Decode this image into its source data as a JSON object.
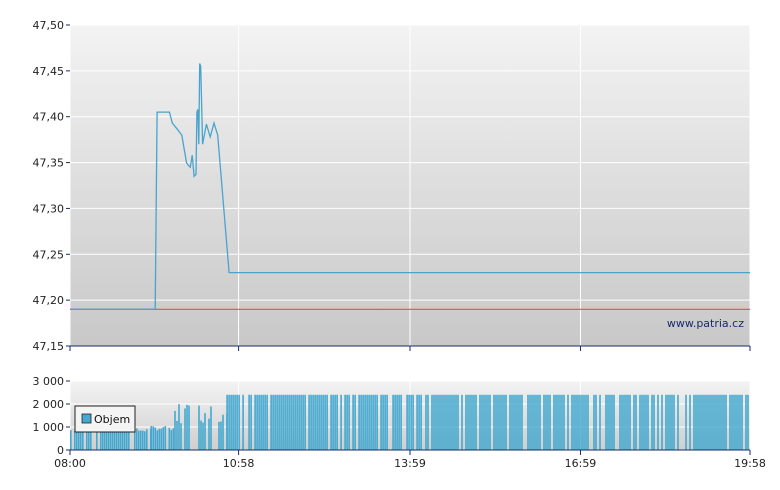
{
  "watermark": "www.patria.cz",
  "colors": {
    "price_line": "#4aa3cc",
    "reference_line": "#e05050",
    "volume_bar": "#44a8d0",
    "axis": "#1a2a6a"
  },
  "chart_data": [
    {
      "type": "line",
      "title": "",
      "x_unit": "time",
      "x_range": [
        "08:00",
        "19:58"
      ],
      "ylim": [
        47.15,
        47.5
      ],
      "y_ticks": [
        "47,50",
        "47,45",
        "47,40",
        "47,35",
        "47,30",
        "47,25",
        "47,20",
        "47,15"
      ],
      "grid": true,
      "reference_value": 47.19,
      "series": [
        {
          "x": [
            "08:00",
            "09:30",
            "09:32",
            "09:45",
            "09:48",
            "09:52",
            "09:58",
            "10:03",
            "10:05",
            "10:07",
            "10:09",
            "10:11",
            "10:12",
            "10:13",
            "10:14",
            "10:15",
            "10:16",
            "10:17",
            "10:18",
            "10:20",
            "10:24",
            "10:26",
            "10:28",
            "10:32",
            "10:36",
            "10:48",
            "19:58"
          ],
          "y": [
            47.19,
            47.19,
            47.405,
            47.405,
            47.393,
            47.388,
            47.38,
            47.35,
            47.347,
            47.345,
            47.358,
            47.335,
            47.336,
            47.337,
            47.405,
            47.408,
            47.37,
            47.458,
            47.455,
            47.37,
            47.392,
            47.385,
            47.378,
            47.393,
            47.38,
            47.23,
            47.23
          ]
        }
      ]
    },
    {
      "type": "bar",
      "series_name": "Objem",
      "ylim": [
        0,
        3000
      ],
      "y_ticks": [
        "3 000",
        "2 000",
        "1 000",
        "0"
      ],
      "x_ticks": [
        "08:00",
        "10:58",
        "13:59",
        "16:59",
        "19:58"
      ],
      "legend_placement": "left",
      "volume_profile": [
        {
          "from": "08:00",
          "to": "09:25",
          "value": 900
        },
        {
          "from": "09:25",
          "to": "09:50",
          "value": 1000
        },
        {
          "from": "09:50",
          "to": "10:45",
          "value": 1900
        },
        {
          "from": "10:45",
          "to": "14:15",
          "value": 2400
        },
        {
          "from": "14:15",
          "to": "19:58",
          "value": 2400
        }
      ]
    }
  ]
}
